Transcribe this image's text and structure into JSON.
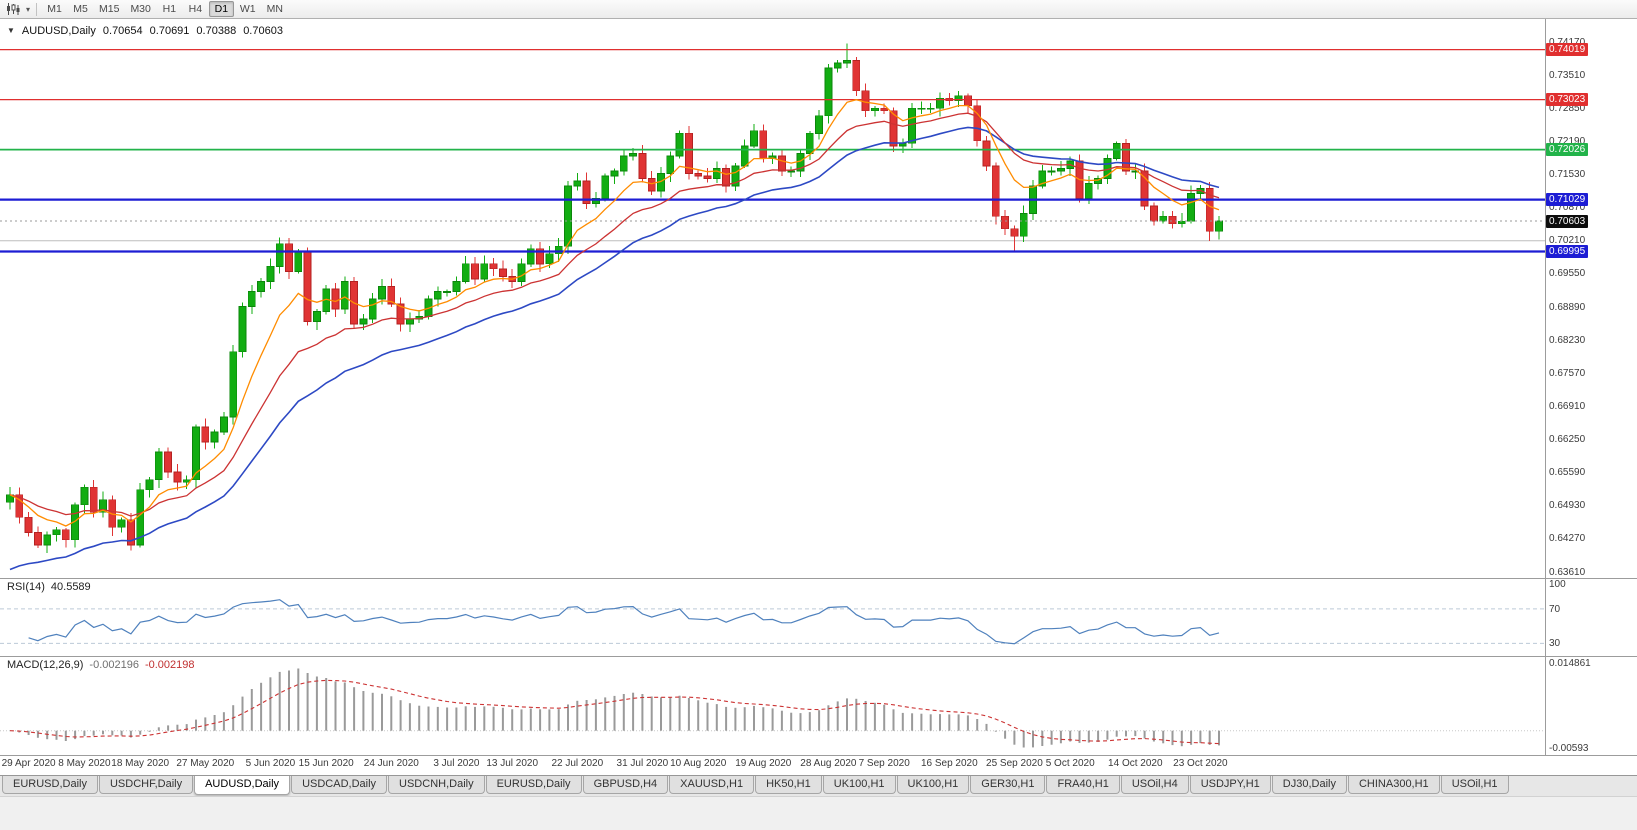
{
  "toolbar": {
    "timeframes": [
      "M1",
      "M5",
      "M15",
      "M30",
      "H1",
      "H4",
      "D1",
      "W1",
      "MN"
    ],
    "active_timeframe": "D1"
  },
  "header": {
    "expander": "▼",
    "symbol": "AUDUSD,Daily",
    "open": "0.70654",
    "high": "0.70691",
    "low": "0.70388",
    "close": "0.70603"
  },
  "price_axis": {
    "ticks": [
      "0.74170",
      "0.73510",
      "0.72850",
      "0.72190",
      "0.71530",
      "0.70870",
      "0.70210",
      "0.69550",
      "0.68890",
      "0.68230",
      "0.67570",
      "0.66910",
      "0.66250",
      "0.65590",
      "0.64930",
      "0.64270",
      "0.63610"
    ]
  },
  "levels": [
    {
      "price": 0.74019,
      "tag": "0.74019",
      "color": "#e02f2f",
      "width": 1.2
    },
    {
      "price": 0.73023,
      "tag": "0.73023",
      "color": "#e02f2f",
      "width": 1.2
    },
    {
      "price": 0.72026,
      "tag": "0.72026",
      "color": "#22b34a",
      "width": 1.7
    },
    {
      "price": 0.71029,
      "tag": "0.71029",
      "color": "#1d1dd4",
      "width": 2.2
    },
    {
      "price": 0.69995,
      "tag": "0.69995",
      "color": "#1d1dd4",
      "width": 2.2
    }
  ],
  "current_price": {
    "value": 0.70603,
    "tag": "0.70603",
    "color": "#0d0d0d"
  },
  "extra_line": {
    "price": 0.7021,
    "color": "#bdbdbd"
  },
  "rsi_panel": {
    "name": "RSI(14)",
    "value": "40.5589",
    "axis_labels": [
      {
        "v": 100,
        "text": "100"
      },
      {
        "v": 70,
        "text": "70"
      },
      {
        "v": 30,
        "text": "30"
      }
    ],
    "dashed_levels": [
      70,
      30
    ],
    "line_color": "#4f81bd",
    "level_color": "#bcc9d8"
  },
  "macd_panel": {
    "name": "MACD(12,26,9)",
    "value1": "-0.002196",
    "value2": "-0.002198",
    "axis_top": "0.014861",
    "axis_bottom": "-0.00593",
    "hist_color": "#9a9a9a",
    "signal_color": "#cc3333"
  },
  "time_axis": [
    {
      "i": 2,
      "label": "29 Apr 2020"
    },
    {
      "i": 8,
      "label": "8 May 2020"
    },
    {
      "i": 14,
      "label": "18 May 2020"
    },
    {
      "i": 21,
      "label": "27 May 2020"
    },
    {
      "i": 28,
      "label": "5 Jun 2020"
    },
    {
      "i": 34,
      "label": "15 Jun 2020"
    },
    {
      "i": 41,
      "label": "24 Jun 2020"
    },
    {
      "i": 48,
      "label": "3 Jul 2020"
    },
    {
      "i": 54,
      "label": "13 Jul 2020"
    },
    {
      "i": 61,
      "label": "22 Jul 2020"
    },
    {
      "i": 68,
      "label": "31 Jul 2020"
    },
    {
      "i": 74,
      "label": "10 Aug 2020"
    },
    {
      "i": 81,
      "label": "19 Aug 2020"
    },
    {
      "i": 88,
      "label": "28 Aug 2020"
    },
    {
      "i": 94,
      "label": "7 Sep 2020"
    },
    {
      "i": 101,
      "label": "16 Sep 2020"
    },
    {
      "i": 108,
      "label": "25 Sep 2020"
    },
    {
      "i": 114,
      "label": "5 Oct 2020"
    },
    {
      "i": 121,
      "label": "14 Oct 2020"
    },
    {
      "i": 128,
      "label": "23 Oct 2020"
    }
  ],
  "tabs": {
    "items": [
      "EURUSD,Daily",
      "USDCHF,Daily",
      "AUDUSD,Daily",
      "USDCAD,Daily",
      "USDCNH,Daily",
      "EURUSD,Daily",
      "GBPUSD,H4",
      "XAUUSD,H1",
      "HK50,H1",
      "UK100,H1",
      "UK100,H1",
      "GER30,H1",
      "FRA40,H1",
      "USOil,H4",
      "USDJPY,H1",
      "DJ30,Daily",
      "CHINA300,H1",
      "USOil,H1"
    ],
    "active_index": 2
  },
  "chart_data": {
    "type": "candlestick",
    "title": "AUDUSD,Daily",
    "ylim": [
      0.6361,
      0.7417
    ],
    "first_open": 0.65,
    "closes": [
      0.6515,
      0.647,
      0.644,
      0.6415,
      0.6435,
      0.6445,
      0.6425,
      0.6495,
      0.653,
      0.648,
      0.6505,
      0.645,
      0.6465,
      0.6415,
      0.6525,
      0.6545,
      0.66,
      0.656,
      0.654,
      0.6545,
      0.665,
      0.662,
      0.664,
      0.667,
      0.68,
      0.689,
      0.692,
      0.694,
      0.697,
      0.7015,
      0.696,
      0.7,
      0.686,
      0.688,
      0.6925,
      0.6885,
      0.694,
      0.6855,
      0.6865,
      0.6905,
      0.693,
      0.6895,
      0.6855,
      0.6865,
      0.687,
      0.6905,
      0.692,
      0.692,
      0.694,
      0.6975,
      0.6945,
      0.6975,
      0.6965,
      0.695,
      0.694,
      0.6975,
      0.7005,
      0.6975,
      0.6995,
      0.701,
      0.713,
      0.714,
      0.7095,
      0.7105,
      0.715,
      0.716,
      0.719,
      0.7195,
      0.7145,
      0.712,
      0.7155,
      0.719,
      0.7235,
      0.7155,
      0.715,
      0.7145,
      0.7165,
      0.713,
      0.717,
      0.721,
      0.724,
      0.7185,
      0.719,
      0.716,
      0.716,
      0.7195,
      0.7235,
      0.727,
      0.7365,
      0.7375,
      0.738,
      0.732,
      0.728,
      0.7285,
      0.728,
      0.721,
      0.7215,
      0.7285,
      0.7285,
      0.7285,
      0.7305,
      0.73,
      0.731,
      0.729,
      0.722,
      0.717,
      0.707,
      0.7045,
      0.703,
      0.7075,
      0.713,
      0.716,
      0.716,
      0.7165,
      0.718,
      0.7105,
      0.7135,
      0.7145,
      0.7185,
      0.7215,
      0.716,
      0.716,
      0.709,
      0.706,
      0.707,
      0.7055,
      0.706,
      0.7115,
      0.7125,
      0.704,
      0.70603
    ],
    "wick_overrides": {
      "90": {
        "h": 0.7414
      },
      "108": {
        "l": 0.6998
      },
      "129": {
        "l": 0.7021
      }
    },
    "colors": {
      "up": "#12ad12",
      "up_stroke": "#0b860b",
      "down": "#e03434",
      "down_stroke": "#b32222",
      "ma_fast": "#ff8c00",
      "ma_mid": "#cc3333",
      "ma_slow": "#2d49c4"
    }
  }
}
